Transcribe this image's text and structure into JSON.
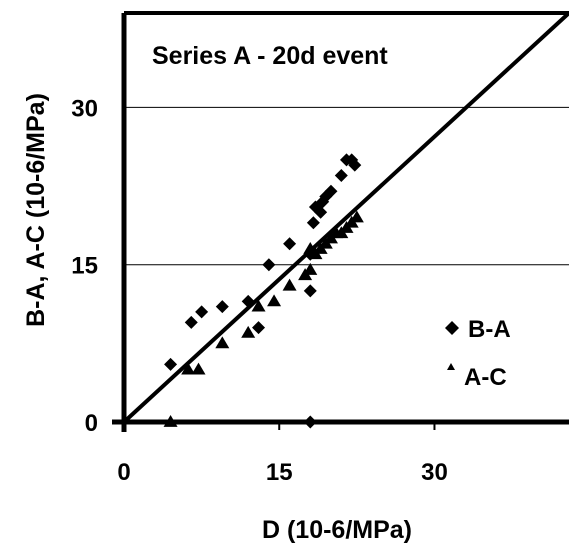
{
  "chart_data": {
    "type": "scatter",
    "title": "Series A - 20d event",
    "xlabel": "D (10-6/MPa)",
    "ylabel": "B-A, A-C (10-6/MPa)",
    "xlim": [
      0,
      43
    ],
    "ylim": [
      0,
      39
    ],
    "xticks": [
      "0",
      "15",
      "30"
    ],
    "yticks": [
      "0",
      "15",
      "30"
    ],
    "grid": "horizontal",
    "legend_position": "bottom-right",
    "reference_line": {
      "type": "1:1",
      "from": [
        0,
        0
      ],
      "to": [
        43,
        39
      ]
    },
    "series": [
      {
        "name": "B-A",
        "marker": "diamond",
        "x": [
          4.5,
          6.5,
          7.5,
          9.5,
          12,
          13,
          14,
          16,
          18,
          18,
          18.3,
          18.5,
          19,
          19.2,
          19.5,
          20,
          21,
          21.5,
          22,
          22.3,
          18
        ],
        "y": [
          5.5,
          9.5,
          10.5,
          11,
          11.5,
          9,
          15,
          17,
          12.5,
          16,
          19,
          20.5,
          20,
          21,
          21.5,
          22,
          23.5,
          25,
          25,
          24.5,
          0
        ]
      },
      {
        "name": "A-C",
        "marker": "triangle",
        "x": [
          4.5,
          6.2,
          7.2,
          9.5,
          12,
          13,
          14.5,
          16,
          17.5,
          18,
          18.5,
          19,
          19.5,
          20,
          20.5,
          21,
          21.5,
          22,
          22.5,
          18
        ],
        "y": [
          0,
          5,
          5,
          7.5,
          8.5,
          11,
          11.5,
          13,
          14,
          14.5,
          16,
          16.5,
          17,
          17.5,
          18,
          18,
          18.5,
          19,
          19.5,
          16.5
        ]
      }
    ]
  }
}
